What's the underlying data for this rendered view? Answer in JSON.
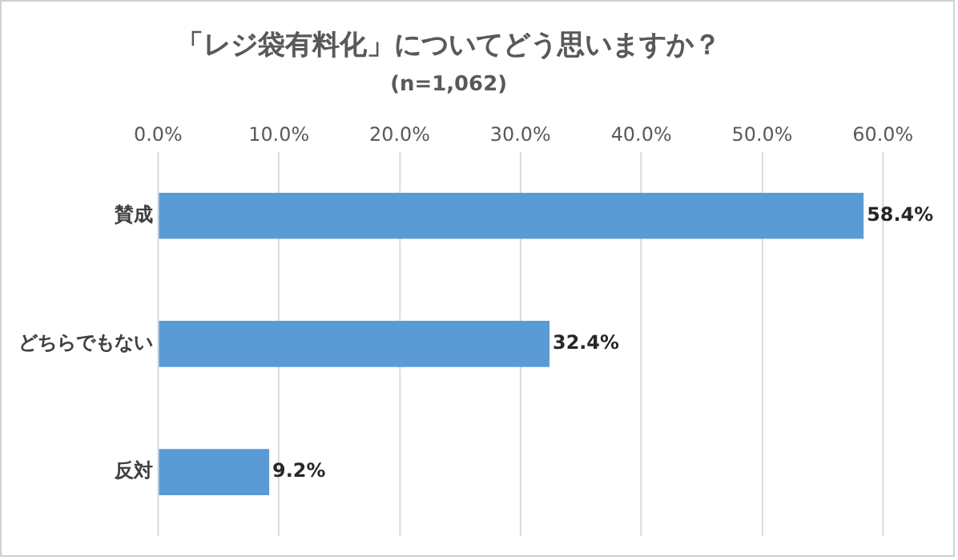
{
  "chart_data": {
    "type": "bar",
    "orientation": "horizontal",
    "title": "「レジ袋有料化」についてどう思いますか？",
    "subtitle": "(n=1,062)",
    "categories": [
      "賛成",
      "どちらでもない",
      "反対"
    ],
    "values": [
      58.4,
      32.4,
      9.2
    ],
    "color": "#5b9bd5",
    "value_labels": [
      "58.4%",
      "32.4%",
      "9.2%"
    ],
    "xlim": [
      0,
      60
    ],
    "xticks": [
      {
        "value": 0,
        "label": "0.0%"
      },
      {
        "value": 10,
        "label": "10.0%"
      },
      {
        "value": 20,
        "label": "20.0%"
      },
      {
        "value": 30,
        "label": "30.0%"
      },
      {
        "value": 40,
        "label": "40.0%"
      },
      {
        "value": 50,
        "label": "50.0%"
      },
      {
        "value": 60,
        "label": "60.0%"
      }
    ],
    "grid": "x",
    "legend": false
  }
}
